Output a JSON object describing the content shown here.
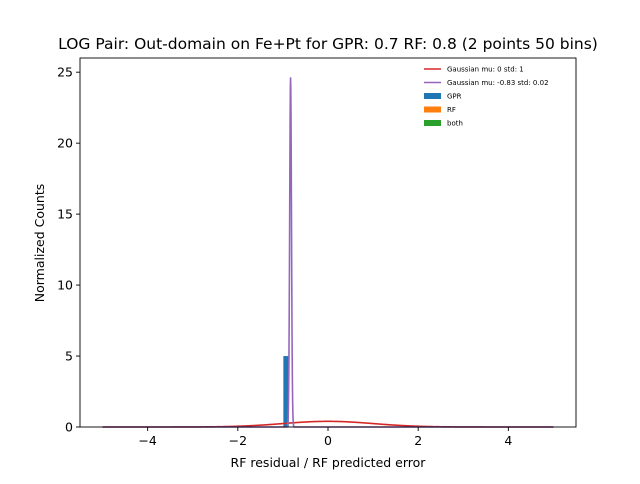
{
  "chart_data": {
    "type": "histogram",
    "title": "LOG Pair: Out-domain on Fe+Pt for GPR: 0.7 RF: 0.8 (2 points 50 bins)",
    "xlabel": "RF residual / RF predicted error",
    "ylabel": "Normalized Counts",
    "xlim": [
      -5.5,
      5.5
    ],
    "ylim": [
      0,
      26
    ],
    "xticks": [
      -4,
      -2,
      0,
      2,
      4
    ],
    "yticks": [
      0,
      5,
      10,
      15,
      20,
      25
    ],
    "legend_position": "top-right",
    "series": [
      {
        "name": "Gaussian mu: 0 std: 1",
        "kind": "line",
        "color": "#d62728",
        "mu": 0,
        "std": 1,
        "x_range": [
          -5,
          5
        ]
      },
      {
        "name": "Gaussian mu: -0.83 std: 0.02",
        "kind": "line",
        "color": "#9467bd",
        "mu": -0.83,
        "std": 0.02,
        "x_range": [
          -5,
          5
        ],
        "peak": 24.6
      },
      {
        "name": "GPR",
        "kind": "bar",
        "color": "#1f77b4",
        "bins": [
          {
            "x0": -0.99,
            "x1": -0.87,
            "value": 5.0
          }
        ]
      },
      {
        "name": "RF",
        "kind": "bar",
        "color": "#ff7f0e",
        "bins": []
      },
      {
        "name": "both",
        "kind": "bar",
        "color": "#2ca02c",
        "bins": []
      }
    ]
  }
}
